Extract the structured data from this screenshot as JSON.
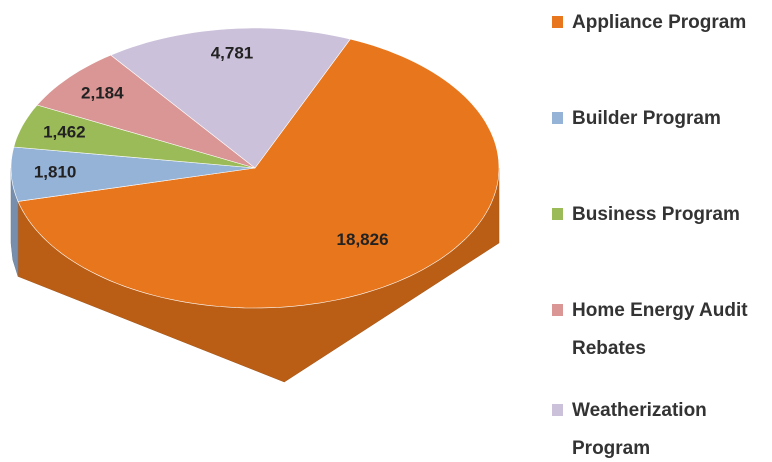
{
  "chart_data": {
    "type": "pie",
    "categories": [
      "Appliance Program",
      "Builder Program",
      "Business Program",
      "Home Energy Audit Rebates",
      "Weatherization Program"
    ],
    "values": [
      18826,
      1810,
      1462,
      2184,
      4781
    ],
    "value_labels": [
      "18,826",
      "1,810",
      "1,462",
      "2,184",
      "4,781"
    ],
    "colors": [
      "#e8761c",
      "#95b3d7",
      "#9bbb59",
      "#d99694",
      "#ccc1da"
    ],
    "legend": "right"
  }
}
